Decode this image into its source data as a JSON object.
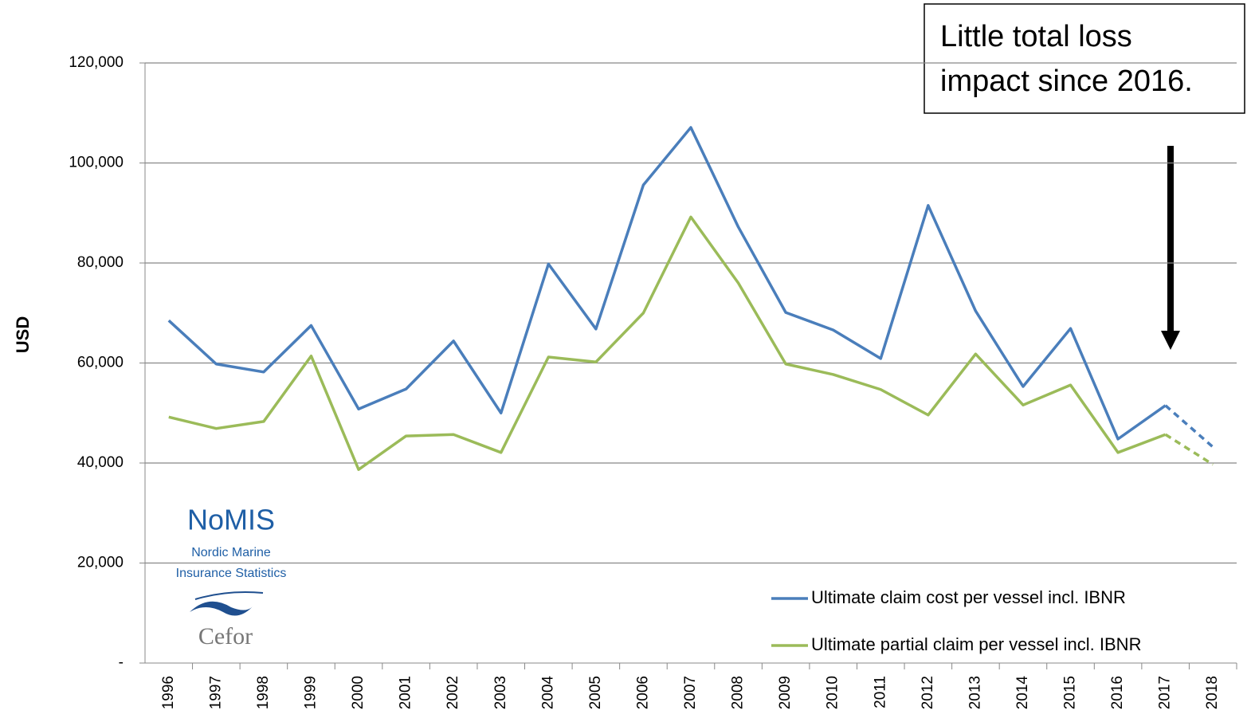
{
  "chart_data": {
    "type": "line",
    "y_label": "USD",
    "categories": [
      "1996",
      "1997",
      "1998",
      "1999",
      "2000",
      "2001",
      "2002",
      "2003",
      "2004",
      "2005",
      "2006",
      "2007",
      "2008",
      "2009",
      "2010",
      "2011",
      "2012",
      "2013",
      "2014",
      "2015",
      "2016",
      "2017",
      "2018"
    ],
    "series": [
      {
        "name": "Ultimate claim cost per vessel incl. IBNR",
        "color": "#4a7ebb",
        "values": [
          68500,
          59800,
          58200,
          67500,
          50800,
          54800,
          64400,
          50000,
          79800,
          66800,
          95600,
          107100,
          87200,
          70100,
          66600,
          60900,
          91500,
          70400,
          55300,
          66900,
          44800,
          51500,
          43200
        ]
      },
      {
        "name": "Ultimate partial claim per vessel incl. IBNR",
        "color": "#9bbb59",
        "values": [
          49200,
          46900,
          48300,
          61400,
          38700,
          45400,
          45700,
          42100,
          61200,
          60200,
          70000,
          89200,
          76000,
          59800,
          57700,
          54700,
          49600,
          61800,
          51600,
          55600,
          42100,
          45700,
          39700
        ]
      }
    ],
    "dashed_after": "2017",
    "ylim": [
      0,
      120000
    ],
    "yticks": [
      {
        "value": 0,
        "label": "-"
      },
      {
        "value": 20000,
        "label": "20,000"
      },
      {
        "value": 40000,
        "label": "40,000"
      },
      {
        "value": 60000,
        "label": "60,000"
      },
      {
        "value": 80000,
        "label": "80,000"
      },
      {
        "value": 100000,
        "label": "100,000"
      },
      {
        "value": 120000,
        "label": "120,000"
      }
    ],
    "grid": true,
    "legend": "lower right",
    "annotation": [
      "Little total loss",
      "impact since 2016."
    ]
  },
  "logo": {
    "name": "NoMIS",
    "subtitle": [
      "Nordic Marine",
      "Insurance Statistics"
    ],
    "brand": "Cefor"
  }
}
